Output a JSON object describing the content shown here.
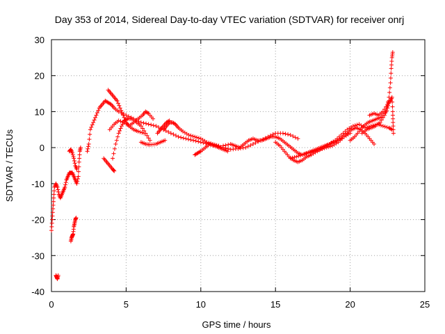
{
  "chart_data": {
    "type": "scatter",
    "title": "Day 353 of 2014, Sidereal Day-to-day VTEC variation (SDTVAR) for receiver onrj",
    "xlabel": "GPS time / hours",
    "ylabel": "SDTVAR / TECUs",
    "xlim": [
      0,
      25
    ],
    "ylim": [
      -40,
      30
    ],
    "x_ticks": [
      "0",
      "5",
      "10",
      "15",
      "20",
      "25"
    ],
    "y_ticks": [
      "-40",
      "-30",
      "-20",
      "-10",
      "0",
      "10",
      "20",
      "30"
    ],
    "grid": true,
    "marker": "+",
    "color": "#ff0000",
    "series": [
      {
        "name": "arc-1",
        "points": [
          [
            0.0,
            -23
          ],
          [
            0.05,
            -20
          ],
          [
            0.1,
            -17
          ],
          [
            0.15,
            -14
          ],
          [
            0.2,
            -11
          ],
          [
            0.3,
            -10
          ],
          [
            0.4,
            -11
          ],
          [
            0.5,
            -13
          ],
          [
            0.6,
            -14
          ],
          [
            0.7,
            -13
          ],
          [
            0.8,
            -12
          ],
          [
            0.9,
            -11
          ],
          [
            1.0,
            -9
          ],
          [
            1.1,
            -8
          ],
          [
            1.2,
            -7
          ],
          [
            1.3,
            -7
          ],
          [
            1.4,
            -7
          ],
          [
            1.5,
            -8
          ],
          [
            1.6,
            -9
          ],
          [
            1.7,
            -10
          ],
          [
            1.8,
            -8
          ],
          [
            1.85,
            -4
          ],
          [
            1.9,
            -1
          ],
          [
            1.95,
            0
          ]
        ]
      },
      {
        "name": "arc-2",
        "points": [
          [
            0.3,
            -35.5
          ],
          [
            0.35,
            -36
          ],
          [
            0.4,
            -36.5
          ],
          [
            0.45,
            -35.5
          ]
        ]
      },
      {
        "name": "arc-3",
        "points": [
          [
            1.3,
            -26
          ],
          [
            1.35,
            -25
          ],
          [
            1.4,
            -24.5
          ],
          [
            1.45,
            -24
          ],
          [
            1.5,
            -22
          ],
          [
            1.55,
            -21
          ],
          [
            1.6,
            -20
          ],
          [
            1.65,
            -19.5
          ]
        ]
      },
      {
        "name": "arc-4",
        "points": [
          [
            1.2,
            -1
          ],
          [
            1.3,
            -0.5
          ],
          [
            1.4,
            -1.5
          ],
          [
            1.5,
            -3
          ],
          [
            1.6,
            -5
          ],
          [
            1.7,
            -6
          ]
        ]
      },
      {
        "name": "arc-5",
        "points": [
          [
            2.4,
            -1
          ],
          [
            2.5,
            1
          ],
          [
            2.6,
            5
          ],
          [
            2.8,
            7
          ],
          [
            3.0,
            9
          ],
          [
            3.2,
            11
          ],
          [
            3.4,
            12
          ],
          [
            3.6,
            13
          ],
          [
            3.8,
            12.5
          ],
          [
            4.0,
            12
          ],
          [
            4.2,
            11
          ],
          [
            4.5,
            10
          ],
          [
            5.0,
            9
          ],
          [
            5.5,
            8
          ],
          [
            6.0,
            7
          ],
          [
            6.5,
            6.5
          ],
          [
            7.0,
            6
          ],
          [
            7.5,
            5
          ],
          [
            8.0,
            4
          ],
          [
            8.5,
            3
          ],
          [
            9.0,
            2.5
          ],
          [
            9.5,
            2
          ],
          [
            10.0,
            1.5
          ],
          [
            10.5,
            1
          ],
          [
            11.0,
            0.5
          ],
          [
            11.5,
            0
          ],
          [
            12.0,
            -0.5
          ],
          [
            12.5,
            -0.3
          ],
          [
            13.0,
            0
          ],
          [
            13.5,
            1
          ],
          [
            14.0,
            2
          ],
          [
            14.5,
            3
          ],
          [
            15.0,
            4
          ],
          [
            15.5,
            4
          ],
          [
            16.0,
            3.5
          ],
          [
            16.5,
            2.5
          ]
        ]
      },
      {
        "name": "arc-6",
        "points": [
          [
            3.5,
            -3
          ],
          [
            3.7,
            -4
          ],
          [
            3.9,
            -5
          ],
          [
            4.1,
            -6
          ],
          [
            4.2,
            -6.5
          ]
        ]
      },
      {
        "name": "arc-7",
        "points": [
          [
            4.1,
            -3
          ],
          [
            4.3,
            1
          ],
          [
            4.5,
            4
          ],
          [
            4.7,
            6
          ],
          [
            4.9,
            7.5
          ],
          [
            5.1,
            8
          ],
          [
            5.4,
            8
          ],
          [
            5.7,
            7
          ],
          [
            6.0,
            6
          ],
          [
            6.3,
            4
          ],
          [
            6.6,
            2
          ]
        ]
      },
      {
        "name": "arc-8",
        "points": [
          [
            3.8,
            16
          ],
          [
            4.0,
            15
          ],
          [
            4.2,
            14
          ],
          [
            4.4,
            13
          ],
          [
            4.6,
            11
          ],
          [
            4.8,
            9
          ],
          [
            5.0,
            7
          ],
          [
            5.2,
            6
          ],
          [
            5.5,
            7
          ],
          [
            5.8,
            8
          ],
          [
            6.1,
            9
          ],
          [
            6.3,
            10
          ],
          [
            6.5,
            9.5
          ],
          [
            6.8,
            8
          ]
        ]
      },
      {
        "name": "arc-9",
        "points": [
          [
            3.9,
            5
          ],
          [
            4.2,
            6.5
          ],
          [
            4.5,
            7.5
          ],
          [
            4.9,
            7
          ],
          [
            5.2,
            6
          ],
          [
            5.5,
            5
          ],
          [
            5.8,
            4.5
          ],
          [
            6.2,
            4
          ]
        ]
      },
      {
        "name": "arc-10",
        "points": [
          [
            6.0,
            1.5
          ],
          [
            6.3,
            1
          ],
          [
            6.6,
            0.8
          ],
          [
            7.0,
            1
          ],
          [
            7.3,
            1.5
          ],
          [
            7.6,
            2
          ]
        ]
      },
      {
        "name": "arc-11",
        "points": [
          [
            7.5,
            5
          ],
          [
            7.7,
            6
          ],
          [
            7.9,
            7
          ],
          [
            8.1,
            7
          ],
          [
            8.3,
            6.5
          ],
          [
            8.5,
            5.5
          ],
          [
            8.8,
            4.5
          ],
          [
            9.2,
            3.5
          ],
          [
            9.6,
            3
          ],
          [
            10.0,
            2.5
          ],
          [
            10.4,
            1.5
          ],
          [
            10.8,
            1
          ],
          [
            11.2,
            0.5
          ]
        ]
      },
      {
        "name": "arc-12",
        "points": [
          [
            7.1,
            4
          ],
          [
            7.3,
            5
          ],
          [
            7.5,
            6
          ],
          [
            7.7,
            7
          ],
          [
            7.9,
            7.5
          ]
        ]
      },
      {
        "name": "arc-13",
        "points": [
          [
            9.6,
            -2
          ],
          [
            9.8,
            -1.5
          ],
          [
            10.0,
            -1
          ],
          [
            10.3,
            0
          ],
          [
            10.6,
            1
          ],
          [
            10.9,
            0.5
          ],
          [
            11.2,
            0
          ],
          [
            11.5,
            -0.5
          ],
          [
            11.8,
            -1
          ]
        ]
      },
      {
        "name": "arc-14",
        "points": [
          [
            11.5,
            0.5
          ],
          [
            12.0,
            1
          ],
          [
            12.3,
            0.5
          ],
          [
            12.6,
            0
          ],
          [
            12.9,
            1
          ],
          [
            13.2,
            2
          ],
          [
            13.5,
            2.5
          ],
          [
            13.8,
            2
          ],
          [
            14.1,
            2
          ],
          [
            14.4,
            2.5
          ],
          [
            14.7,
            3
          ],
          [
            15.0,
            3
          ],
          [
            15.3,
            2.5
          ],
          [
            15.6,
            1.5
          ],
          [
            15.9,
            0.5
          ],
          [
            16.2,
            -0.5
          ],
          [
            16.5,
            -1.5
          ],
          [
            16.8,
            -2
          ],
          [
            17.1,
            -1.5
          ],
          [
            17.4,
            -1
          ],
          [
            17.7,
            -0.5
          ],
          [
            18.0,
            0
          ],
          [
            18.3,
            0.5
          ],
          [
            18.6,
            1
          ],
          [
            18.9,
            1.5
          ],
          [
            19.2,
            2
          ],
          [
            19.5,
            3
          ],
          [
            19.8,
            4
          ],
          [
            20.1,
            5
          ],
          [
            20.4,
            5.5
          ],
          [
            20.7,
            5
          ],
          [
            21.0,
            4
          ],
          [
            21.3,
            2.5
          ],
          [
            21.6,
            1
          ]
        ]
      },
      {
        "name": "arc-15",
        "points": [
          [
            15.0,
            1.5
          ],
          [
            15.3,
            0.5
          ],
          [
            15.6,
            -1
          ],
          [
            15.9,
            -2.5
          ],
          [
            16.2,
            -3.5
          ],
          [
            16.5,
            -4
          ],
          [
            16.8,
            -3.5
          ],
          [
            17.1,
            -2.5
          ],
          [
            17.4,
            -2
          ],
          [
            17.8,
            -1
          ],
          [
            18.2,
            0
          ],
          [
            18.6,
            1
          ],
          [
            19.0,
            2
          ],
          [
            19.4,
            3.5
          ],
          [
            19.8,
            5
          ],
          [
            20.2,
            6
          ],
          [
            20.6,
            6.5
          ],
          [
            21.0,
            5.5
          ],
          [
            21.4,
            6
          ],
          [
            21.8,
            6.5
          ],
          [
            22.2,
            6
          ],
          [
            22.6,
            5.5
          ],
          [
            22.8,
            5
          ]
        ]
      },
      {
        "name": "arc-16",
        "points": [
          [
            20.0,
            2
          ],
          [
            20.3,
            3
          ],
          [
            20.6,
            4.5
          ],
          [
            20.9,
            6
          ],
          [
            21.2,
            7
          ],
          [
            21.5,
            7.5
          ],
          [
            21.8,
            8
          ],
          [
            22.1,
            8.5
          ],
          [
            22.4,
            10
          ],
          [
            22.6,
            14
          ],
          [
            22.7,
            18
          ],
          [
            22.75,
            22
          ],
          [
            22.8,
            25
          ],
          [
            22.85,
            26.5
          ]
        ]
      },
      {
        "name": "arc-17",
        "points": [
          [
            20.8,
            4
          ],
          [
            21.1,
            5
          ],
          [
            21.4,
            5.5
          ],
          [
            21.7,
            6
          ],
          [
            22.0,
            7
          ],
          [
            22.3,
            9
          ],
          [
            22.5,
            11
          ],
          [
            22.6,
            13
          ]
        ]
      },
      {
        "name": "arc-18",
        "points": [
          [
            21.3,
            9
          ],
          [
            21.6,
            9.5
          ],
          [
            21.9,
            9
          ],
          [
            22.2,
            10
          ],
          [
            22.5,
            12
          ],
          [
            22.7,
            13
          ],
          [
            22.8,
            14
          ],
          [
            22.85,
            10
          ],
          [
            22.87,
            7
          ],
          [
            22.9,
            4
          ]
        ]
      },
      {
        "name": "arc-19",
        "points": [
          [
            16.0,
            -3
          ],
          [
            16.4,
            -2.5
          ],
          [
            16.8,
            -2
          ],
          [
            17.2,
            -1.5
          ],
          [
            17.6,
            -1
          ],
          [
            18.0,
            -0.5
          ],
          [
            18.4,
            0
          ],
          [
            18.8,
            0.5
          ],
          [
            19.2,
            1.5
          ],
          [
            19.6,
            3
          ],
          [
            20.0,
            4
          ]
        ]
      }
    ]
  }
}
